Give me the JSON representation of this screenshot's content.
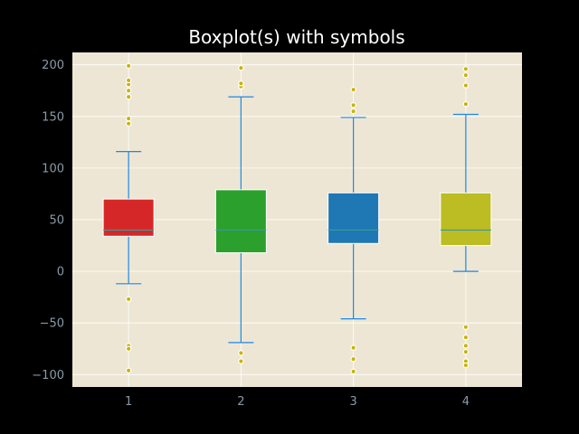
{
  "chart_data": {
    "type": "box",
    "title": "Boxplot(s) with symbols",
    "xlabel": "",
    "ylabel": "",
    "categories": [
      "1",
      "2",
      "3",
      "4"
    ],
    "ylim": [
      -112,
      212
    ],
    "yticks": [
      -100,
      -50,
      0,
      50,
      100,
      150,
      200
    ],
    "ytick_labels": [
      "−100",
      "−50",
      "0",
      "50",
      "100",
      "150",
      "200"
    ],
    "grid": true,
    "boxes": [
      {
        "category": "1",
        "whisker_low": -12,
        "q1": 34,
        "median": 40,
        "q3": 70,
        "whisker_high": 116,
        "color": "#d62728",
        "fliers": [
          -27,
          -72,
          -75,
          -96,
          143,
          148,
          169,
          175,
          181,
          185,
          199
        ]
      },
      {
        "category": "2",
        "whisker_low": -69,
        "q1": 18,
        "median": 40,
        "q3": 79,
        "whisker_high": 169,
        "color": "#2ca02c",
        "fliers": [
          -79,
          -87,
          179,
          182,
          197
        ]
      },
      {
        "category": "3",
        "whisker_low": -46,
        "q1": 27,
        "median": 40,
        "q3": 76,
        "whisker_high": 149,
        "color": "#1f77b4",
        "fliers": [
          -74,
          -85,
          -97,
          155,
          161,
          176
        ]
      },
      {
        "category": "4",
        "whisker_low": 0,
        "q1": 25,
        "median": 40,
        "q3": 76,
        "whisker_high": 152,
        "color": "#bcbd22",
        "fliers": [
          -54,
          -64,
          -72,
          -78,
          -87,
          -91,
          162,
          180,
          190,
          196
        ]
      }
    ]
  },
  "colors": {
    "figure_background": "#000000",
    "axes_background": "#ede6d4",
    "grid": "#ffffff",
    "whisker": "#1e88e5",
    "median": "#3a9a9a",
    "flier": "#c8b400",
    "tick_label": "#8a9aa6"
  }
}
